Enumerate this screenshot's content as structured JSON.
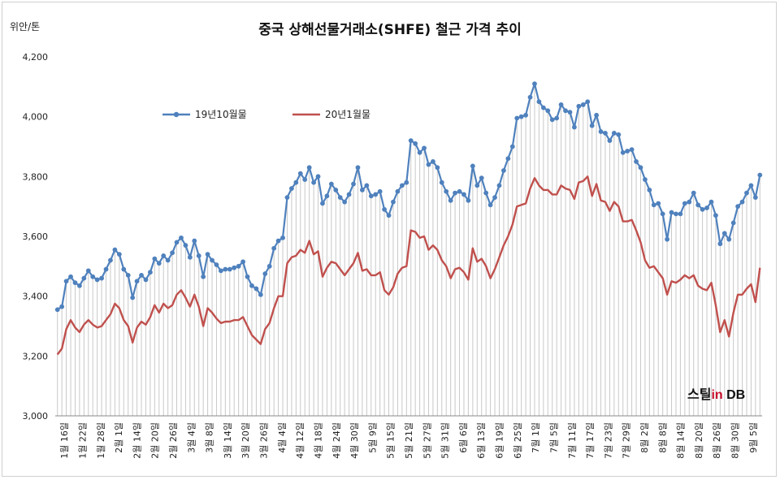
{
  "header": {
    "title": "중국 상해선물거래소(SHFE)  철근 가격 추이",
    "unit": "위안/톤"
  },
  "logo": {
    "part1": "스틸",
    "part2": "in",
    "part3": " DB"
  },
  "colors": {
    "series1": "#4f81bd",
    "series2": "#c0504d",
    "drop": "#c8c8c8"
  },
  "chart_data": {
    "type": "line",
    "title": "중국 상해선물거래소(SHFE)  철근 가격 추이",
    "ylabel": "위안/톤",
    "ylim": [
      3000,
      4200
    ],
    "yticks": [
      3000,
      3200,
      3400,
      3600,
      3800,
      4000,
      4200
    ],
    "yticklabels": [
      "3,000",
      "3,200",
      "3,400",
      "3,600",
      "3,800",
      "4,000",
      "4,200"
    ],
    "xticklabels": [
      "1월 16일",
      "1월 22일",
      "1월 28일",
      "2월 1일",
      "2월 14일",
      "2월 20일",
      "2월 26일",
      "3월 4일",
      "3월 8일",
      "3월 14일",
      "3월 20일",
      "3월 26일",
      "4월 4일",
      "4월 12일",
      "4월 18일",
      "4월 24일",
      "4월 30일",
      "5월 9일",
      "5월 15일",
      "5월 21일",
      "5월 27일",
      "5월 31일",
      "6월 6일",
      "6월 13일",
      "6월 19일",
      "6월 25일",
      "7월 1일",
      "7월 5일",
      "7월 11일",
      "7월 17일",
      "7월 23일",
      "7월 29일",
      "8월 2일",
      "8월 8일",
      "8월 14일",
      "8월 20일",
      "8월 26일",
      "8월 30일",
      "9월 5일"
    ],
    "grid": false,
    "drop_lines": true,
    "legend": "top-left",
    "series": [
      {
        "name": "19년10월물",
        "values": [
          3355,
          3365,
          3450,
          3465,
          3445,
          3435,
          3460,
          3485,
          3465,
          3455,
          3460,
          3490,
          3520,
          3555,
          3540,
          3490,
          3470,
          3395,
          3450,
          3470,
          3455,
          3480,
          3525,
          3510,
          3535,
          3520,
          3545,
          3580,
          3595,
          3570,
          3530,
          3585,
          3535,
          3465,
          3540,
          3520,
          3505,
          3485,
          3490,
          3490,
          3495,
          3500,
          3515,
          3465,
          3435,
          3425,
          3405,
          3475,
          3500,
          3560,
          3585,
          3595,
          3730,
          3760,
          3780,
          3810,
          3790,
          3830,
          3780,
          3800,
          3710,
          3735,
          3775,
          3755,
          3730,
          3715,
          3740,
          3775,
          3830,
          3755,
          3770,
          3735,
          3740,
          3750,
          3690,
          3670,
          3715,
          3750,
          3770,
          3780,
          3920,
          3910,
          3880,
          3895,
          3840,
          3850,
          3830,
          3780,
          3750,
          3720,
          3745,
          3750,
          3740,
          3720,
          3835,
          3770,
          3795,
          3745,
          3705,
          3730,
          3770,
          3820,
          3860,
          3900,
          3995,
          4000,
          4005,
          4065,
          4110,
          4050,
          4030,
          4020,
          3990,
          3995,
          4040,
          4020,
          4015,
          3965,
          4035,
          4040,
          4050,
          3970,
          4005,
          3950,
          3945,
          3920,
          3945,
          3940,
          3880,
          3885,
          3890,
          3850,
          3830,
          3790,
          3755,
          3705,
          3710,
          3675,
          3590,
          3680,
          3675,
          3675,
          3710,
          3715,
          3745,
          3705,
          3690,
          3695,
          3715,
          3670,
          3575,
          3610,
          3590,
          3645,
          3700,
          3715,
          3745,
          3770,
          3730,
          3805
        ]
      },
      {
        "name": "20년1월물",
        "values": [
          3205,
          3225,
          3290,
          3320,
          3295,
          3280,
          3305,
          3320,
          3305,
          3295,
          3300,
          3320,
          3340,
          3375,
          3360,
          3320,
          3300,
          3245,
          3295,
          3315,
          3305,
          3330,
          3370,
          3345,
          3375,
          3360,
          3370,
          3405,
          3420,
          3395,
          3365,
          3405,
          3365,
          3300,
          3360,
          3345,
          3325,
          3310,
          3315,
          3315,
          3320,
          3320,
          3330,
          3300,
          3270,
          3255,
          3240,
          3290,
          3310,
          3360,
          3400,
          3400,
          3510,
          3530,
          3535,
          3555,
          3545,
          3585,
          3540,
          3550,
          3465,
          3495,
          3515,
          3510,
          3490,
          3470,
          3490,
          3510,
          3545,
          3485,
          3490,
          3470,
          3470,
          3480,
          3420,
          3405,
          3430,
          3475,
          3495,
          3500,
          3620,
          3615,
          3595,
          3600,
          3555,
          3570,
          3555,
          3520,
          3500,
          3460,
          3490,
          3495,
          3480,
          3455,
          3560,
          3515,
          3525,
          3500,
          3460,
          3490,
          3530,
          3570,
          3600,
          3640,
          3700,
          3705,
          3710,
          3760,
          3795,
          3770,
          3755,
          3755,
          3740,
          3740,
          3770,
          3760,
          3755,
          3725,
          3780,
          3785,
          3800,
          3735,
          3775,
          3720,
          3715,
          3685,
          3715,
          3700,
          3650,
          3650,
          3655,
          3620,
          3580,
          3520,
          3495,
          3500,
          3480,
          3460,
          3405,
          3450,
          3445,
          3455,
          3470,
          3460,
          3470,
          3435,
          3425,
          3420,
          3445,
          3370,
          3280,
          3320,
          3265,
          3345,
          3405,
          3405,
          3425,
          3440,
          3380,
          3495
        ]
      }
    ]
  }
}
